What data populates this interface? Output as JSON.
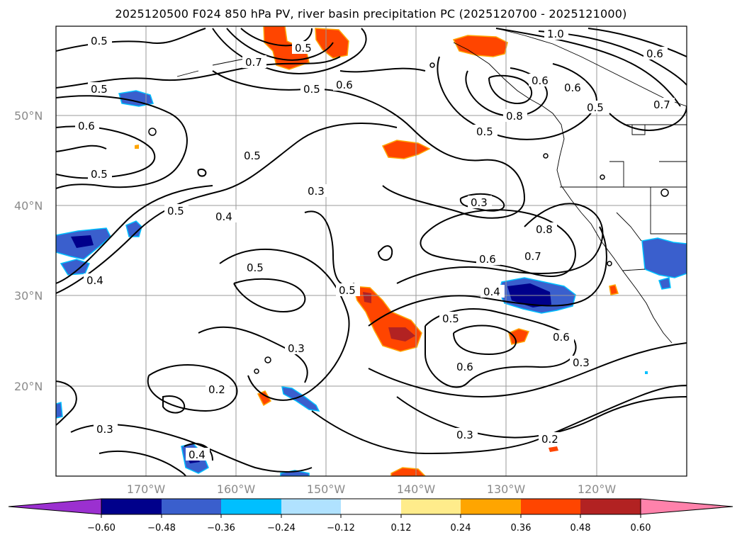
{
  "title": "2025120500 F024 850 hPa PV, river basin precipitation PC (2025120700 - 2025121000)",
  "lat_labels": [
    "50°N",
    "40°N",
    "30°N",
    "20°N"
  ],
  "lon_labels": [
    "170°W",
    "160°W",
    "150°W",
    "140°W",
    "130°W",
    "120°W"
  ],
  "contour_labels": [
    "0.5",
    "0.5",
    "0.6",
    "0.5",
    "0.5",
    "0.5",
    "0.4",
    "0.4",
    "0.3",
    "0.5",
    "0.3",
    "0.5",
    "0.6",
    "0.3",
    "0.2",
    "0.3",
    "0.5",
    "0.6",
    "0.7",
    "0.8",
    "0.6",
    "0.4",
    "0.5",
    "0.6",
    "0.3",
    "0.2",
    "0.3",
    "0.6",
    "0.5",
    "0.6",
    "0.7",
    "0.8",
    "1.0",
    "0.6",
    "0.7",
    "0.5",
    "0.5",
    "0.4"
  ],
  "colorbar": {
    "tick_labels": [
      "−0.60",
      "−0.48",
      "−0.36",
      "−0.24",
      "−0.12",
      "0.12",
      "0.24",
      "0.36",
      "0.48",
      "0.60"
    ],
    "colors": [
      "#9b30d0",
      "#00008b",
      "#3a5fcd",
      "#00bfff",
      "#b0e2ff",
      "#ffffff",
      "#ffec8b",
      "#ffa500",
      "#ff4500",
      "#b22222",
      "#ff82ab"
    ]
  },
  "map": {
    "lat_range": [
      10,
      60
    ],
    "lon_range": [
      -180,
      -110
    ],
    "fields": [
      "850 hPa PV",
      "river basin precipitation PC"
    ]
  }
}
